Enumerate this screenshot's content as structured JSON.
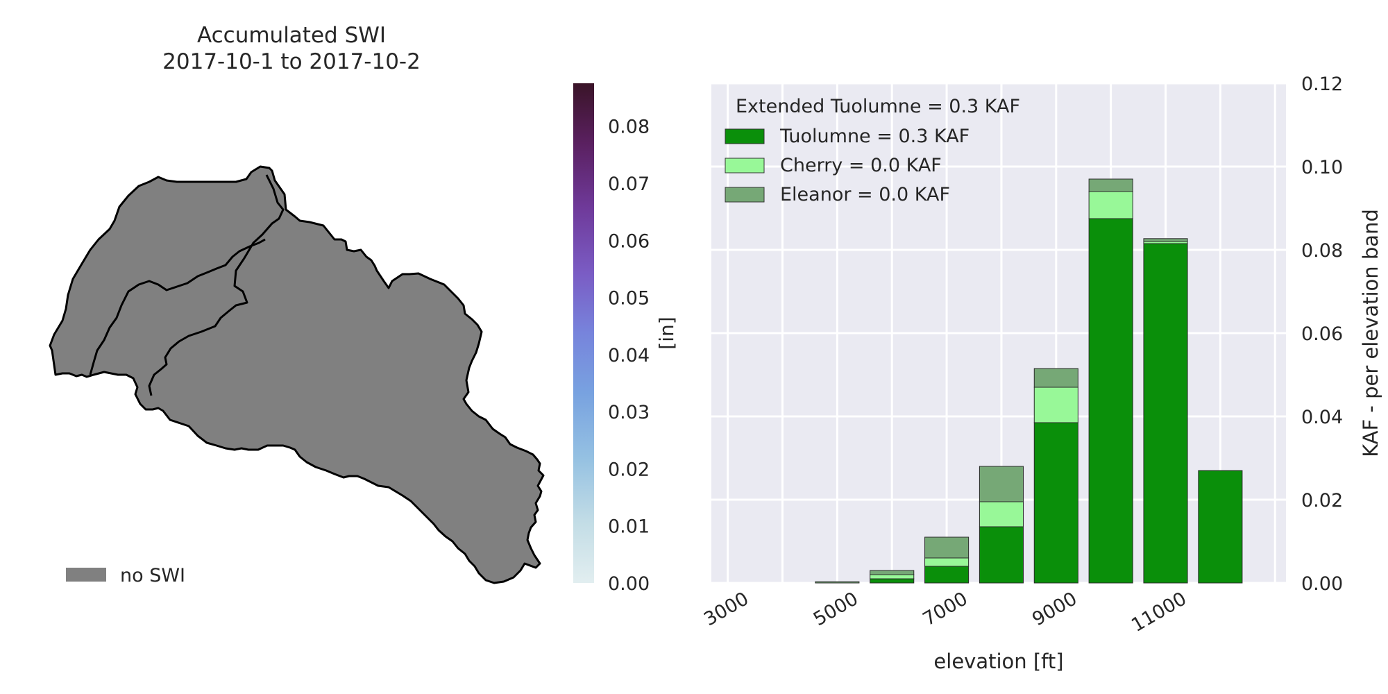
{
  "map_panel": {
    "title_line1": "Accumulated SWI",
    "title_line2": "2017-10-1 to 2017-10-2",
    "legend_label": "no SWI",
    "fill_color": "#808080",
    "colorbar": {
      "label": "[in]",
      "ticks": [
        "0.00",
        "0.01",
        "0.02",
        "0.03",
        "0.04",
        "0.05",
        "0.06",
        "0.07",
        "0.08"
      ],
      "range": [
        0,
        0.0875
      ],
      "colormap": "twilight-like (light teal to blue to purple to dark maroon)"
    }
  },
  "chart_data": {
    "type": "bar",
    "stacked": true,
    "xlabel": "elevation [ft]",
    "ylabel": "KAF - per elevation band",
    "ylim": [
      0,
      0.12
    ],
    "yticks": [
      "0.00",
      "0.02",
      "0.04",
      "0.06",
      "0.08",
      "0.10",
      "0.12"
    ],
    "xtick_labels": [
      "3000",
      "5000",
      "7000",
      "9000",
      "11000"
    ],
    "xtick_values": [
      3000,
      5000,
      7000,
      9000,
      11000
    ],
    "xlim": [
      2700,
      13200
    ],
    "bar_width_ft": 800,
    "grid": true,
    "legend_placement": "top-left",
    "legend_title": "Extended Tuolumne = 0.3 KAF",
    "categories": [
      5000,
      6000,
      7000,
      8000,
      9000,
      10000,
      11000,
      12000
    ],
    "series": [
      {
        "name": "Tuolumne = 0.3 KAF",
        "color": "#0a8f0a",
        "values": [
          0.0,
          0.001,
          0.004,
          0.0135,
          0.0385,
          0.0875,
          0.0815,
          0.027
        ]
      },
      {
        "name": "Cherry = 0.0 KAF",
        "color": "#98f898",
        "values": [
          0.0,
          0.001,
          0.002,
          0.006,
          0.0085,
          0.0065,
          0.0005,
          0.0
        ]
      },
      {
        "name": "Eleanor = 0.0 KAF",
        "color": "#76a876",
        "values": [
          0.0003,
          0.001,
          0.005,
          0.0085,
          0.0045,
          0.003,
          0.0007,
          0.0
        ]
      }
    ]
  }
}
